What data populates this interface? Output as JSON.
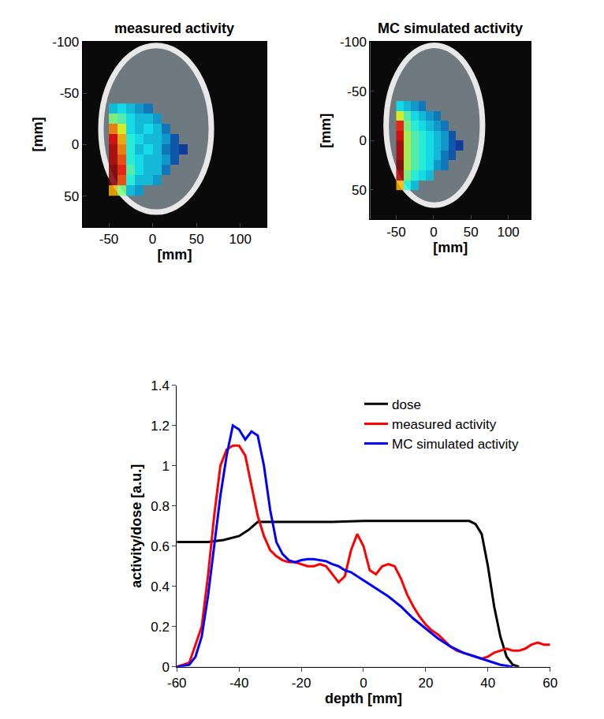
{
  "chart_data": [
    {
      "type": "heatmap",
      "title": "measured activity",
      "x_label": "[mm]",
      "y_label": "[mm]",
      "xlim": [
        -80,
        130
      ],
      "xticks": [
        -50,
        0,
        50,
        100
      ],
      "ylim": [
        80,
        -100
      ],
      "yticks": [
        -100,
        -50,
        0,
        50
      ],
      "grid": false,
      "zlim": [
        0,
        1
      ],
      "x": [
        -45,
        -35,
        -25,
        -15,
        -5,
        5,
        15,
        25,
        35
      ],
      "y": [
        -35,
        -25,
        -15,
        -5,
        5,
        15,
        25,
        35,
        45
      ],
      "cells": [
        [
          0.3,
          0.35,
          0.3,
          0.25,
          0.2,
          null,
          null,
          null,
          null
        ],
        [
          0.5,
          0.45,
          0.35,
          0.3,
          0.3,
          0.25,
          null,
          null,
          null
        ],
        [
          0.75,
          0.6,
          0.35,
          0.3,
          0.35,
          0.3,
          0.2,
          null,
          null
        ],
        [
          0.9,
          0.7,
          0.4,
          0.35,
          0.3,
          0.3,
          0.25,
          0.15,
          null
        ],
        [
          0.95,
          0.75,
          0.4,
          0.3,
          0.35,
          0.3,
          0.2,
          0.15,
          0.1
        ],
        [
          0.95,
          0.8,
          0.4,
          0.35,
          0.3,
          0.3,
          0.25,
          0.15,
          null
        ],
        [
          1.0,
          0.85,
          0.45,
          0.35,
          0.3,
          0.3,
          0.2,
          null,
          null
        ],
        [
          1.0,
          0.8,
          0.4,
          0.3,
          0.3,
          0.25,
          null,
          null,
          null
        ],
        [
          0.7,
          0.5,
          0.3,
          0.25,
          null,
          null,
          null,
          null,
          null
        ]
      ]
    },
    {
      "type": "heatmap",
      "title": "MC simulated activity",
      "x_label": "[mm]",
      "y_label": "[mm]",
      "xlim": [
        -85,
        130
      ],
      "xticks": [
        -50,
        0,
        50,
        100
      ],
      "ylim": [
        80,
        -100
      ],
      "yticks": [
        -100,
        -50,
        0,
        50
      ],
      "grid": false,
      "zlim": [
        0,
        1
      ],
      "x": [
        -45,
        -35,
        -25,
        -15,
        -5,
        5,
        15,
        25,
        35
      ],
      "y": [
        -35,
        -25,
        -15,
        -5,
        5,
        15,
        25,
        35,
        45
      ],
      "cells": [
        [
          0.35,
          0.3,
          0.25,
          0.2,
          null,
          null,
          null,
          null,
          null
        ],
        [
          0.6,
          0.45,
          0.35,
          0.3,
          0.25,
          0.2,
          null,
          null,
          null
        ],
        [
          0.85,
          0.5,
          0.4,
          0.35,
          0.3,
          0.25,
          0.2,
          null,
          null
        ],
        [
          0.9,
          0.55,
          0.45,
          0.4,
          0.35,
          0.3,
          0.25,
          0.15,
          null
        ],
        [
          0.95,
          0.55,
          0.45,
          0.4,
          0.35,
          0.3,
          0.25,
          0.15,
          0.1
        ],
        [
          0.95,
          0.55,
          0.45,
          0.4,
          0.35,
          0.3,
          0.2,
          0.15,
          null
        ],
        [
          1.0,
          0.55,
          0.45,
          0.4,
          0.35,
          0.25,
          0.2,
          null,
          null
        ],
        [
          0.95,
          0.5,
          0.4,
          0.35,
          0.3,
          null,
          null,
          null,
          null
        ],
        [
          0.7,
          0.4,
          0.3,
          null,
          null,
          null,
          null,
          null,
          null
        ]
      ]
    },
    {
      "type": "line",
      "x_label": "depth [mm]",
      "y_label": "activity/dose [a.u.]",
      "xlim": [
        -60,
        60
      ],
      "xticks": [
        -60,
        -40,
        -20,
        0,
        20,
        40,
        60
      ],
      "ylim": [
        0,
        1.4
      ],
      "yticks": [
        0,
        0.2,
        0.4,
        0.6,
        0.8,
        1,
        1.2,
        1.4
      ],
      "grid": false,
      "legend": "upper right",
      "series": [
        {
          "name": "dose",
          "color": "#000000",
          "x": [
            -60,
            -50,
            -45,
            -40,
            -37,
            -34,
            -30,
            -20,
            -10,
            0,
            10,
            20,
            30,
            34,
            36,
            38,
            40,
            42,
            44,
            46,
            48,
            50
          ],
          "values": [
            0.62,
            0.62,
            0.63,
            0.65,
            0.68,
            0.72,
            0.72,
            0.72,
            0.72,
            0.725,
            0.725,
            0.725,
            0.725,
            0.725,
            0.71,
            0.66,
            0.5,
            0.3,
            0.15,
            0.05,
            0.01,
            0
          ]
        },
        {
          "name": "measured activity",
          "color": "#ff0000",
          "x": [
            -60,
            -56,
            -52,
            -50,
            -48,
            -46,
            -44,
            -42,
            -40,
            -38,
            -36,
            -34,
            -32,
            -30,
            -28,
            -26,
            -24,
            -22,
            -20,
            -18,
            -16,
            -14,
            -12,
            -10,
            -8,
            -6,
            -4,
            -2,
            0,
            2,
            4,
            6,
            8,
            10,
            12,
            14,
            16,
            18,
            20,
            22,
            24,
            26,
            28,
            30,
            32,
            34,
            36,
            38,
            40,
            42,
            44,
            46,
            48,
            50,
            52,
            54,
            56,
            58,
            60
          ],
          "values": [
            0,
            0.02,
            0.2,
            0.45,
            0.75,
            1.0,
            1.08,
            1.1,
            1.1,
            1.05,
            0.9,
            0.75,
            0.65,
            0.58,
            0.55,
            0.53,
            0.52,
            0.52,
            0.51,
            0.5,
            0.5,
            0.51,
            0.5,
            0.46,
            0.42,
            0.45,
            0.58,
            0.66,
            0.6,
            0.48,
            0.46,
            0.5,
            0.51,
            0.5,
            0.44,
            0.36,
            0.3,
            0.25,
            0.21,
            0.18,
            0.16,
            0.13,
            0.1,
            0.08,
            0.07,
            0.06,
            0.05,
            0.04,
            0.05,
            0.07,
            0.08,
            0.09,
            0.08,
            0.08,
            0.09,
            0.11,
            0.12,
            0.11,
            0.11
          ]
        },
        {
          "name": "MC simulated activity",
          "color": "#0000ff",
          "x": [
            -60,
            -56,
            -54,
            -52,
            -50,
            -48,
            -46,
            -44,
            -42,
            -40,
            -38,
            -36,
            -34,
            -32,
            -30,
            -28,
            -26,
            -24,
            -22,
            -20,
            -18,
            -16,
            -14,
            -12,
            -10,
            -8,
            -6,
            -4,
            -2,
            0,
            4,
            8,
            12,
            16,
            20,
            24,
            28,
            32,
            36,
            40,
            44,
            48
          ],
          "values": [
            0,
            0.01,
            0.05,
            0.15,
            0.35,
            0.6,
            0.85,
            1.05,
            1.2,
            1.18,
            1.13,
            1.17,
            1.15,
            1.0,
            0.78,
            0.62,
            0.56,
            0.53,
            0.52,
            0.53,
            0.535,
            0.535,
            0.53,
            0.525,
            0.51,
            0.5,
            0.48,
            0.47,
            0.45,
            0.43,
            0.39,
            0.35,
            0.3,
            0.24,
            0.19,
            0.14,
            0.1,
            0.07,
            0.05,
            0.03,
            0.01,
            0
          ]
        }
      ]
    }
  ]
}
